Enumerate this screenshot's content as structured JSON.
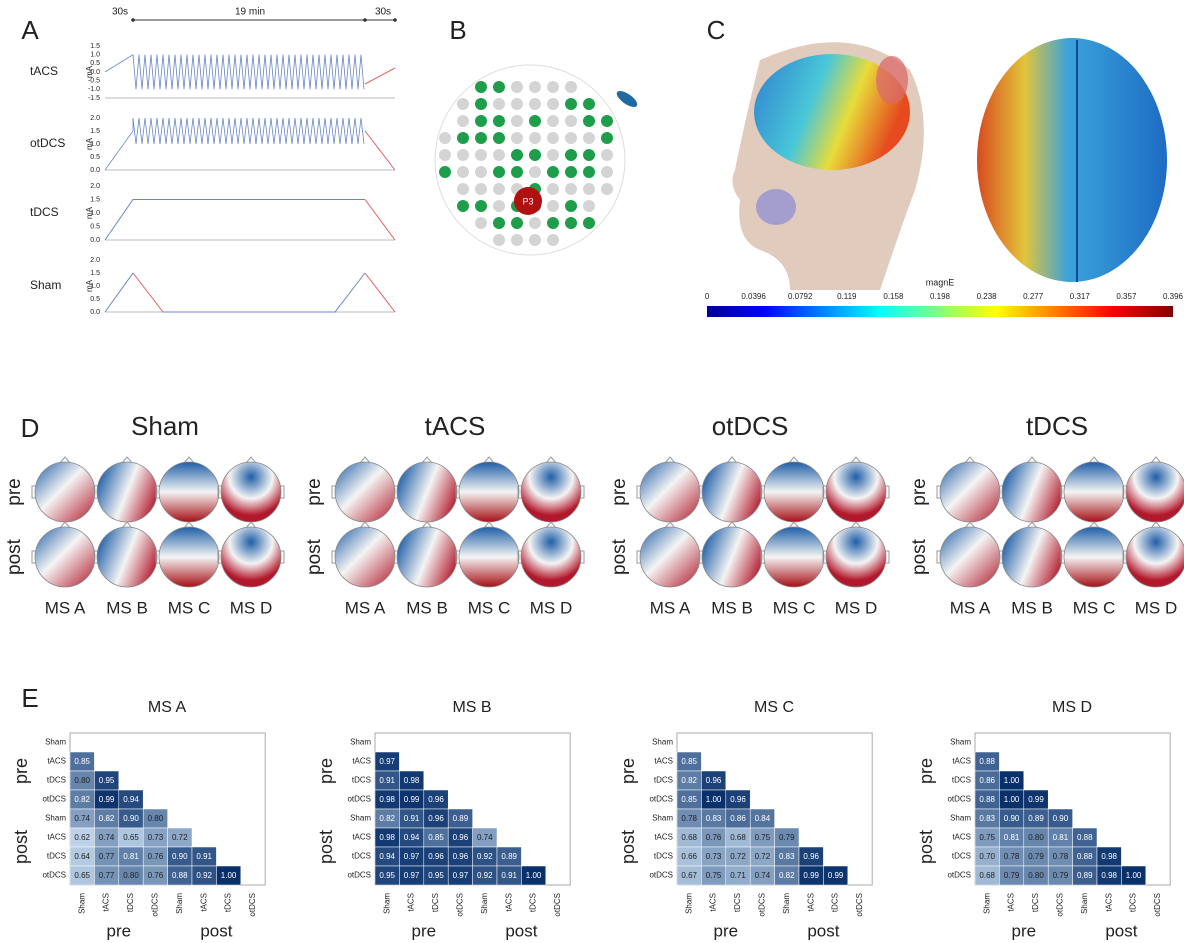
{
  "panels": {
    "a": {
      "label": "A",
      "durations": [
        "30s",
        "19 min",
        "30s"
      ],
      "rows": [
        {
          "name": "tACS",
          "unit": "mA",
          "yticks": [
            "1.5",
            "1.0",
            "0.5",
            "0.0",
            "-0.5",
            "-1.0",
            "-1.5"
          ]
        },
        {
          "name": "otDCS",
          "unit": "mA",
          "yticks": [
            "2.0",
            "1.5",
            "1.0",
            "0.5",
            "0.0"
          ]
        },
        {
          "name": "tDCS",
          "unit": "mA",
          "yticks": [
            "2.0",
            "1.5",
            "1.0",
            "0.5",
            "0.0"
          ]
        },
        {
          "name": "Sham",
          "unit": "mA",
          "yticks": [
            "2.0",
            "1.5",
            "1.0",
            "0.5",
            "0.0"
          ]
        }
      ]
    },
    "b": {
      "label": "B",
      "electrode": "P3"
    },
    "c": {
      "label": "C",
      "colorbar_title": "magnE",
      "colorbar_ticks": [
        "0",
        "0.0396",
        "0.0792",
        "0.119",
        "0.158",
        "0.198",
        "0.238",
        "0.277",
        "0.317",
        "0.357",
        "0.396"
      ]
    },
    "d": {
      "label": "D",
      "groups": [
        "Sham",
        "tACS",
        "otDCS",
        "tDCS"
      ],
      "rows": [
        "pre",
        "post"
      ],
      "maps": [
        "MS A",
        "MS B",
        "MS C",
        "MS D"
      ]
    },
    "e": {
      "label": "E",
      "conditions": [
        "Sham",
        "tACS",
        "tDCS",
        "otDCS",
        "Sham",
        "tACS",
        "tDCS",
        "otDCS"
      ],
      "groups": [
        "pre",
        "post"
      ],
      "matrices": [
        {
          "title": "MS A",
          "values": [
            [],
            [
              "0.85"
            ],
            [
              "0.80",
              "0.95"
            ],
            [
              "0.82",
              "0.99",
              "0.94"
            ],
            [
              "0.74",
              "0.82",
              "0.90",
              "0.80"
            ],
            [
              "0.62",
              "0.74",
              "0.65",
              "0.73",
              "0.72"
            ],
            [
              "0.64",
              "0.77",
              "0.81",
              "0.76",
              "0.90",
              "0.91"
            ],
            [
              "0.65",
              "0.77",
              "0.80",
              "0.76",
              "0.88",
              "0.92",
              "1.00"
            ]
          ]
        },
        {
          "title": "MS B",
          "values": [
            [],
            [
              "0.97"
            ],
            [
              "0.91",
              "0.98"
            ],
            [
              "0.98",
              "0.99",
              "0.96"
            ],
            [
              "0.82",
              "0.91",
              "0.96",
              "0.89"
            ],
            [
              "0.98",
              "0.94",
              "0.85",
              "0.96",
              "0.74"
            ],
            [
              "0.94",
              "0.97",
              "0.96",
              "0.96",
              "0.92",
              "0.89"
            ],
            [
              "0.95",
              "0.97",
              "0.95",
              "0.97",
              "0.92",
              "0.91",
              "1.00"
            ]
          ]
        },
        {
          "title": "MS C",
          "values": [
            [],
            [
              "0.85"
            ],
            [
              "0.82",
              "0.96"
            ],
            [
              "0.85",
              "1.00",
              "0.96"
            ],
            [
              "0.78",
              "0.83",
              "0.86",
              "0.84"
            ],
            [
              "0.68",
              "0.76",
              "0.68",
              "0.75",
              "0.79"
            ],
            [
              "0.66",
              "0.73",
              "0.72",
              "0.72",
              "0.83",
              "0.96"
            ],
            [
              "0.67",
              "0.75",
              "0.71",
              "0.74",
              "0.82",
              "0.99",
              "0.99"
            ]
          ]
        },
        {
          "title": "MS D",
          "values": [
            [],
            [
              "0.88"
            ],
            [
              "0.86",
              "1.00"
            ],
            [
              "0.88",
              "1.00",
              "0.99"
            ],
            [
              "0.83",
              "0.90",
              "0.89",
              "0.90"
            ],
            [
              "0.75",
              "0.81",
              "0.80",
              "0.81",
              "0.88"
            ],
            [
              "0.70",
              "0.78",
              "0.79",
              "0.78",
              "0.88",
              "0.98"
            ],
            [
              "0.68",
              "0.79",
              "0.80",
              "0.79",
              "0.89",
              "0.98",
              "1.00"
            ]
          ]
        }
      ]
    }
  }
}
